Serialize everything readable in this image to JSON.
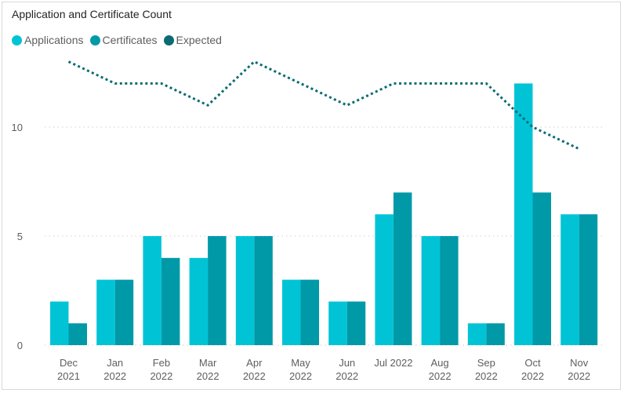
{
  "title": "Application and Certificate Count",
  "colors": {
    "applications": "#00c4d6",
    "certificates": "#0099a8",
    "expected": "#0a6b73",
    "grid": "#cfcfcf"
  },
  "legend": [
    {
      "label": "Applications",
      "color": "#00c4d6"
    },
    {
      "label": "Certificates",
      "color": "#0099a8"
    },
    {
      "label": "Expected",
      "color": "#0a6b73"
    }
  ],
  "chart_data": {
    "type": "bar",
    "title": "Application and Certificate Count",
    "categories": [
      [
        "Dec",
        "2021"
      ],
      [
        "Jan",
        "2022"
      ],
      [
        "Feb",
        "2022"
      ],
      [
        "Mar",
        "2022"
      ],
      [
        "Apr",
        "2022"
      ],
      [
        "May",
        "2022"
      ],
      [
        "Jun",
        "2022"
      ],
      [
        "Jul 2022"
      ],
      [
        "Aug",
        "2022"
      ],
      [
        "Sep",
        "2022"
      ],
      [
        "Oct",
        "2022"
      ],
      [
        "Nov",
        "2022"
      ]
    ],
    "series": [
      {
        "name": "Applications",
        "type": "bar",
        "values": [
          2,
          3,
          5,
          4,
          5,
          3,
          2,
          6,
          5,
          1,
          12,
          6
        ]
      },
      {
        "name": "Certificates",
        "type": "bar",
        "values": [
          1,
          3,
          4,
          5,
          5,
          3,
          2,
          7,
          5,
          1,
          7,
          6
        ]
      },
      {
        "name": "Expected",
        "type": "line",
        "style": "dotted",
        "values": [
          13,
          12,
          12,
          11,
          13,
          12,
          11,
          12,
          12,
          12,
          10,
          9
        ]
      }
    ],
    "yticks": [
      0,
      5,
      10
    ],
    "ylim": [
      0,
      14
    ],
    "xlabel": "",
    "ylabel": "",
    "grid": true,
    "legend_position": "top-left"
  }
}
